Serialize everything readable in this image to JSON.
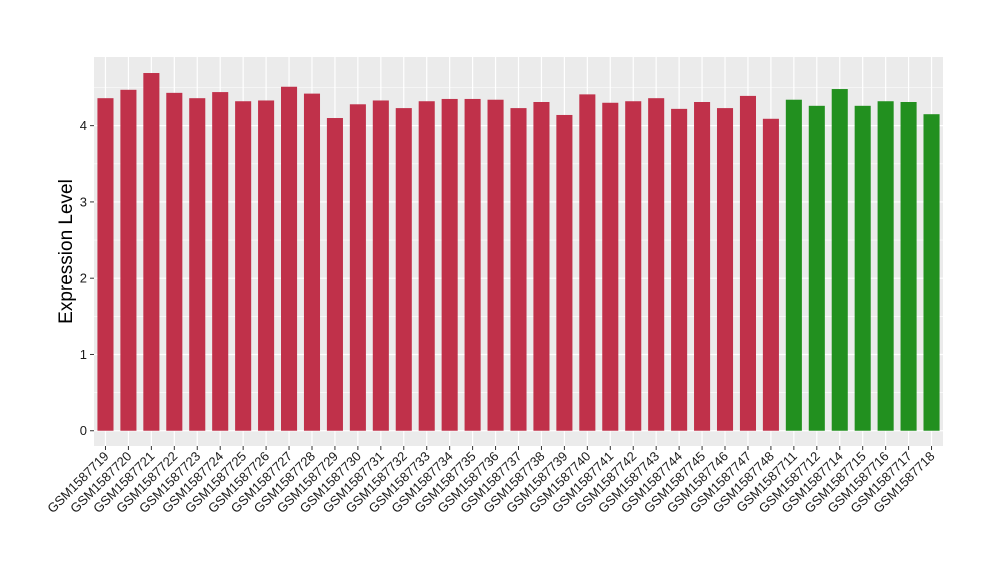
{
  "chart_data": {
    "type": "bar",
    "ylabel": "Expression Level",
    "xlabel": "",
    "ylim": [
      -0.2,
      4.9
    ],
    "yticks": [
      0,
      1,
      2,
      3,
      4
    ],
    "grid": true,
    "colors": {
      "group1": "#c0314a",
      "group2": "#22901f",
      "panel": "#ebebeb",
      "gridline": "#ffffff"
    },
    "categories": [
      "GSM1587719",
      "GSM1587720",
      "GSM1587721",
      "GSM1587722",
      "GSM1587723",
      "GSM1587724",
      "GSM1587725",
      "GSM1587726",
      "GSM1587727",
      "GSM1587728",
      "GSM1587729",
      "GSM1587730",
      "GSM1587731",
      "GSM1587732",
      "GSM1587733",
      "GSM1587734",
      "GSM1587735",
      "GSM1587736",
      "GSM1587737",
      "GSM1587738",
      "GSM1587739",
      "GSM1587740",
      "GSM1587741",
      "GSM1587742",
      "GSM1587743",
      "GSM1587744",
      "GSM1587745",
      "GSM1587746",
      "GSM1587747",
      "GSM1587748",
      "GSM1587711",
      "GSM1587712",
      "GSM1587714",
      "GSM1587715",
      "GSM1587716",
      "GSM1587717",
      "GSM1587718"
    ],
    "values": [
      4.36,
      4.47,
      4.69,
      4.43,
      4.36,
      4.44,
      4.32,
      4.33,
      4.51,
      4.42,
      4.1,
      4.28,
      4.33,
      4.23,
      4.32,
      4.35,
      4.35,
      4.34,
      4.23,
      4.31,
      4.14,
      4.41,
      4.3,
      4.32,
      4.36,
      4.22,
      4.31,
      4.23,
      4.39,
      4.09,
      4.34,
      4.26,
      4.48,
      4.26,
      4.32,
      4.31,
      4.15
    ],
    "groups": [
      1,
      1,
      1,
      1,
      1,
      1,
      1,
      1,
      1,
      1,
      1,
      1,
      1,
      1,
      1,
      1,
      1,
      1,
      1,
      1,
      1,
      1,
      1,
      1,
      1,
      1,
      1,
      1,
      1,
      1,
      2,
      2,
      2,
      2,
      2,
      2,
      2
    ]
  }
}
